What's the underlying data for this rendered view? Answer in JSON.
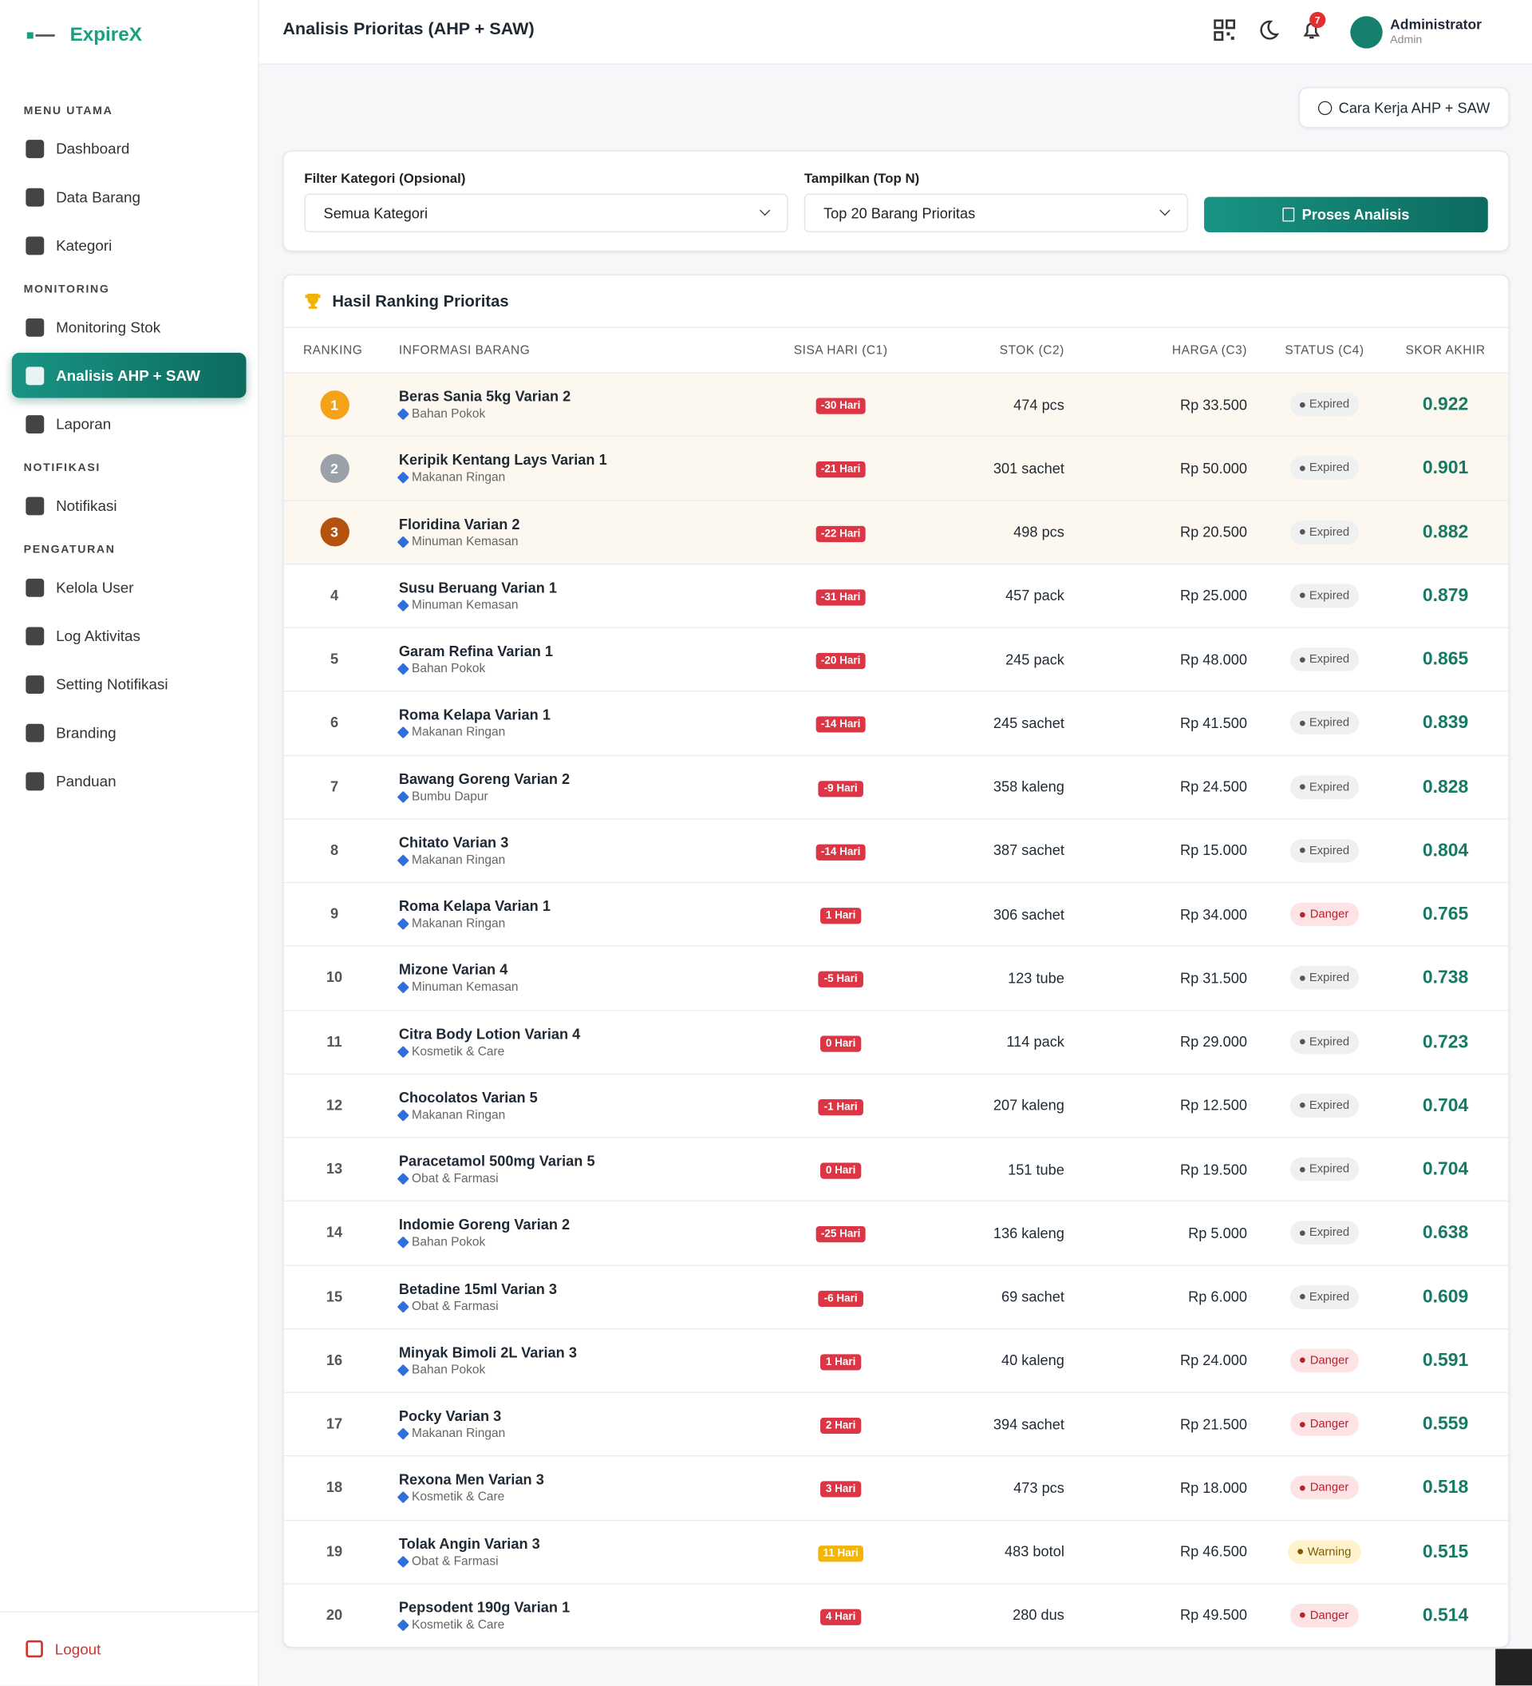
{
  "sidebar": {
    "brand": "ExpireX",
    "sections": [
      {
        "title": "MENU UTAMA",
        "items": [
          "Dashboard",
          "Data Barang",
          "Kategori"
        ]
      },
      {
        "title": "MONITORING",
        "items": [
          "Monitoring Stok",
          "Analisis AHP + SAW",
          "Laporan"
        ]
      },
      {
        "title": "NOTIFIKASI",
        "items": [
          "Notifikasi"
        ]
      },
      {
        "title": "PENGATURAN",
        "items": [
          "Kelola User",
          "Log Aktivitas",
          "Setting Notifikasi",
          "Branding",
          "Panduan"
        ]
      }
    ],
    "active": "Analisis AHP + SAW",
    "logout": "Logout"
  },
  "header": {
    "title": "Analisis Prioritas (AHP + SAW)",
    "notifications": 7,
    "user": "Administrator",
    "role": "Admin"
  },
  "help_button": "Cara Kerja AHP + SAW",
  "filters": {
    "category_label": "Filter Kategori (Opsional)",
    "category_value": "Semua Kategori",
    "top_label": "Tampilkan (Top N)",
    "top_value": "Top 20 Barang Prioritas",
    "button": "Proses Analisis"
  },
  "table": {
    "title": "Hasil Ranking Prioritas",
    "headers": [
      "RANKING",
      "INFORMASI BARANG",
      "SISA HARI (C1)",
      "STOK (C2)",
      "HARGA (C3)",
      "STATUS (C4)",
      "SKOR AKHIR"
    ],
    "medal_colors": [
      "#f5a21b",
      "#9aa1a9",
      "#b4520f"
    ],
    "rows": [
      {
        "rank": 1,
        "name": "Beras Sania 5kg Varian 2",
        "category": "Bahan Pokok",
        "days": "-30 Hari",
        "stock": "474 pcs",
        "price": "Rp 33.500",
        "status": "Expired",
        "score": "0.922",
        "day_color": "#dc3545",
        "status_bg": "#eef0f2",
        "status_color": "#555"
      },
      {
        "rank": 2,
        "name": "Keripik Kentang Lays Varian 1",
        "category": "Makanan Ringan",
        "days": "-21 Hari",
        "stock": "301 sachet",
        "price": "Rp 50.000",
        "status": "Expired",
        "score": "0.901",
        "day_color": "#dc3545",
        "status_bg": "#eef0f2",
        "status_color": "#555"
      },
      {
        "rank": 3,
        "name": "Floridina Varian 2",
        "category": "Minuman Kemasan",
        "days": "-22 Hari",
        "stock": "498 pcs",
        "price": "Rp 20.500",
        "status": "Expired",
        "score": "0.882",
        "day_color": "#dc3545",
        "status_bg": "#eef0f2",
        "status_color": "#555"
      },
      {
        "rank": 4,
        "name": "Susu Beruang Varian 1",
        "category": "Minuman Kemasan",
        "days": "-31 Hari",
        "stock": "457 pack",
        "price": "Rp 25.000",
        "status": "Expired",
        "score": "0.879",
        "day_color": "#dc3545",
        "status_bg": "#eef0f2",
        "status_color": "#555"
      },
      {
        "rank": 5,
        "name": "Garam Refina Varian 1",
        "category": "Bahan Pokok",
        "days": "-20 Hari",
        "stock": "245 pack",
        "price": "Rp 48.000",
        "status": "Expired",
        "score": "0.865",
        "day_color": "#dc3545",
        "status_bg": "#eef0f2",
        "status_color": "#555"
      },
      {
        "rank": 6,
        "name": "Roma Kelapa Varian 1",
        "category": "Makanan Ringan",
        "days": "-14 Hari",
        "stock": "245 sachet",
        "price": "Rp 41.500",
        "status": "Expired",
        "score": "0.839",
        "day_color": "#dc3545",
        "status_bg": "#eef0f2",
        "status_color": "#555"
      },
      {
        "rank": 7,
        "name": "Bawang Goreng Varian 2",
        "category": "Bumbu Dapur",
        "days": "-9 Hari",
        "stock": "358 kaleng",
        "price": "Rp 24.500",
        "status": "Expired",
        "score": "0.828",
        "day_color": "#dc3545",
        "status_bg": "#eef0f2",
        "status_color": "#555"
      },
      {
        "rank": 8,
        "name": "Chitato Varian 3",
        "category": "Makanan Ringan",
        "days": "-14 Hari",
        "stock": "387 sachet",
        "price": "Rp 15.000",
        "status": "Expired",
        "score": "0.804",
        "day_color": "#dc3545",
        "status_bg": "#eef0f2",
        "status_color": "#555"
      },
      {
        "rank": 9,
        "name": "Roma Kelapa Varian 1",
        "category": "Makanan Ringan",
        "days": "1 Hari",
        "stock": "306 sachet",
        "price": "Rp 34.000",
        "status": "Danger",
        "score": "0.765",
        "day_color": "#dc3545",
        "status_bg": "#fde3e5",
        "status_color": "#b4232f"
      },
      {
        "rank": 10,
        "name": "Mizone Varian 4",
        "category": "Minuman Kemasan",
        "days": "-5 Hari",
        "stock": "123 tube",
        "price": "Rp 31.500",
        "status": "Expired",
        "score": "0.738",
        "day_color": "#dc3545",
        "status_bg": "#eef0f2",
        "status_color": "#555"
      },
      {
        "rank": 11,
        "name": "Citra Body Lotion Varian 4",
        "category": "Kosmetik & Care",
        "days": "0 Hari",
        "stock": "114 pack",
        "price": "Rp 29.000",
        "status": "Expired",
        "score": "0.723",
        "day_color": "#dc3545",
        "status_bg": "#eef0f2",
        "status_color": "#555"
      },
      {
        "rank": 12,
        "name": "Chocolatos Varian 5",
        "category": "Makanan Ringan",
        "days": "-1 Hari",
        "stock": "207 kaleng",
        "price": "Rp 12.500",
        "status": "Expired",
        "score": "0.704",
        "day_color": "#dc3545",
        "status_bg": "#eef0f2",
        "status_color": "#555"
      },
      {
        "rank": 13,
        "name": "Paracetamol 500mg Varian 5",
        "category": "Obat & Farmasi",
        "days": "0 Hari",
        "stock": "151 tube",
        "price": "Rp 19.500",
        "status": "Expired",
        "score": "0.704",
        "day_color": "#dc3545",
        "status_bg": "#eef0f2",
        "status_color": "#555"
      },
      {
        "rank": 14,
        "name": "Indomie Goreng Varian 2",
        "category": "Bahan Pokok",
        "days": "-25 Hari",
        "stock": "136 kaleng",
        "price": "Rp 5.000",
        "status": "Expired",
        "score": "0.638",
        "day_color": "#dc3545",
        "status_bg": "#eef0f2",
        "status_color": "#555"
      },
      {
        "rank": 15,
        "name": "Betadine 15ml Varian 3",
        "category": "Obat & Farmasi",
        "days": "-6 Hari",
        "stock": "69 sachet",
        "price": "Rp 6.000",
        "status": "Expired",
        "score": "0.609",
        "day_color": "#dc3545",
        "status_bg": "#eef0f2",
        "status_color": "#555"
      },
      {
        "rank": 16,
        "name": "Minyak Bimoli 2L Varian 3",
        "category": "Bahan Pokok",
        "days": "1 Hari",
        "stock": "40 kaleng",
        "price": "Rp 24.000",
        "status": "Danger",
        "score": "0.591",
        "day_color": "#dc3545",
        "status_bg": "#fde3e5",
        "status_color": "#b4232f"
      },
      {
        "rank": 17,
        "name": "Pocky Varian 3",
        "category": "Makanan Ringan",
        "days": "2 Hari",
        "stock": "394 sachet",
        "price": "Rp 21.500",
        "status": "Danger",
        "score": "0.559",
        "day_color": "#dc3545",
        "status_bg": "#fde3e5",
        "status_color": "#b4232f"
      },
      {
        "rank": 18,
        "name": "Rexona Men Varian 3",
        "category": "Kosmetik & Care",
        "days": "3 Hari",
        "stock": "473 pcs",
        "price": "Rp 18.000",
        "status": "Danger",
        "score": "0.518",
        "day_color": "#dc3545",
        "status_bg": "#fde3e5",
        "status_color": "#b4232f"
      },
      {
        "rank": 19,
        "name": "Tolak Angin Varian 3",
        "category": "Obat & Farmasi",
        "days": "11 Hari",
        "stock": "483 botol",
        "price": "Rp 46.500",
        "status": "Warning",
        "score": "0.515",
        "day_color": "#f4b400",
        "status_bg": "#fff3cd",
        "status_color": "#7a5b00"
      },
      {
        "rank": 20,
        "name": "Pepsodent 190g Varian 1",
        "category": "Kosmetik & Care",
        "days": "4 Hari",
        "stock": "280 dus",
        "price": "Rp 49.500",
        "status": "Danger",
        "score": "0.514",
        "day_color": "#dc3545",
        "status_bg": "#fde3e5",
        "status_color": "#b4232f"
      }
    ]
  }
}
